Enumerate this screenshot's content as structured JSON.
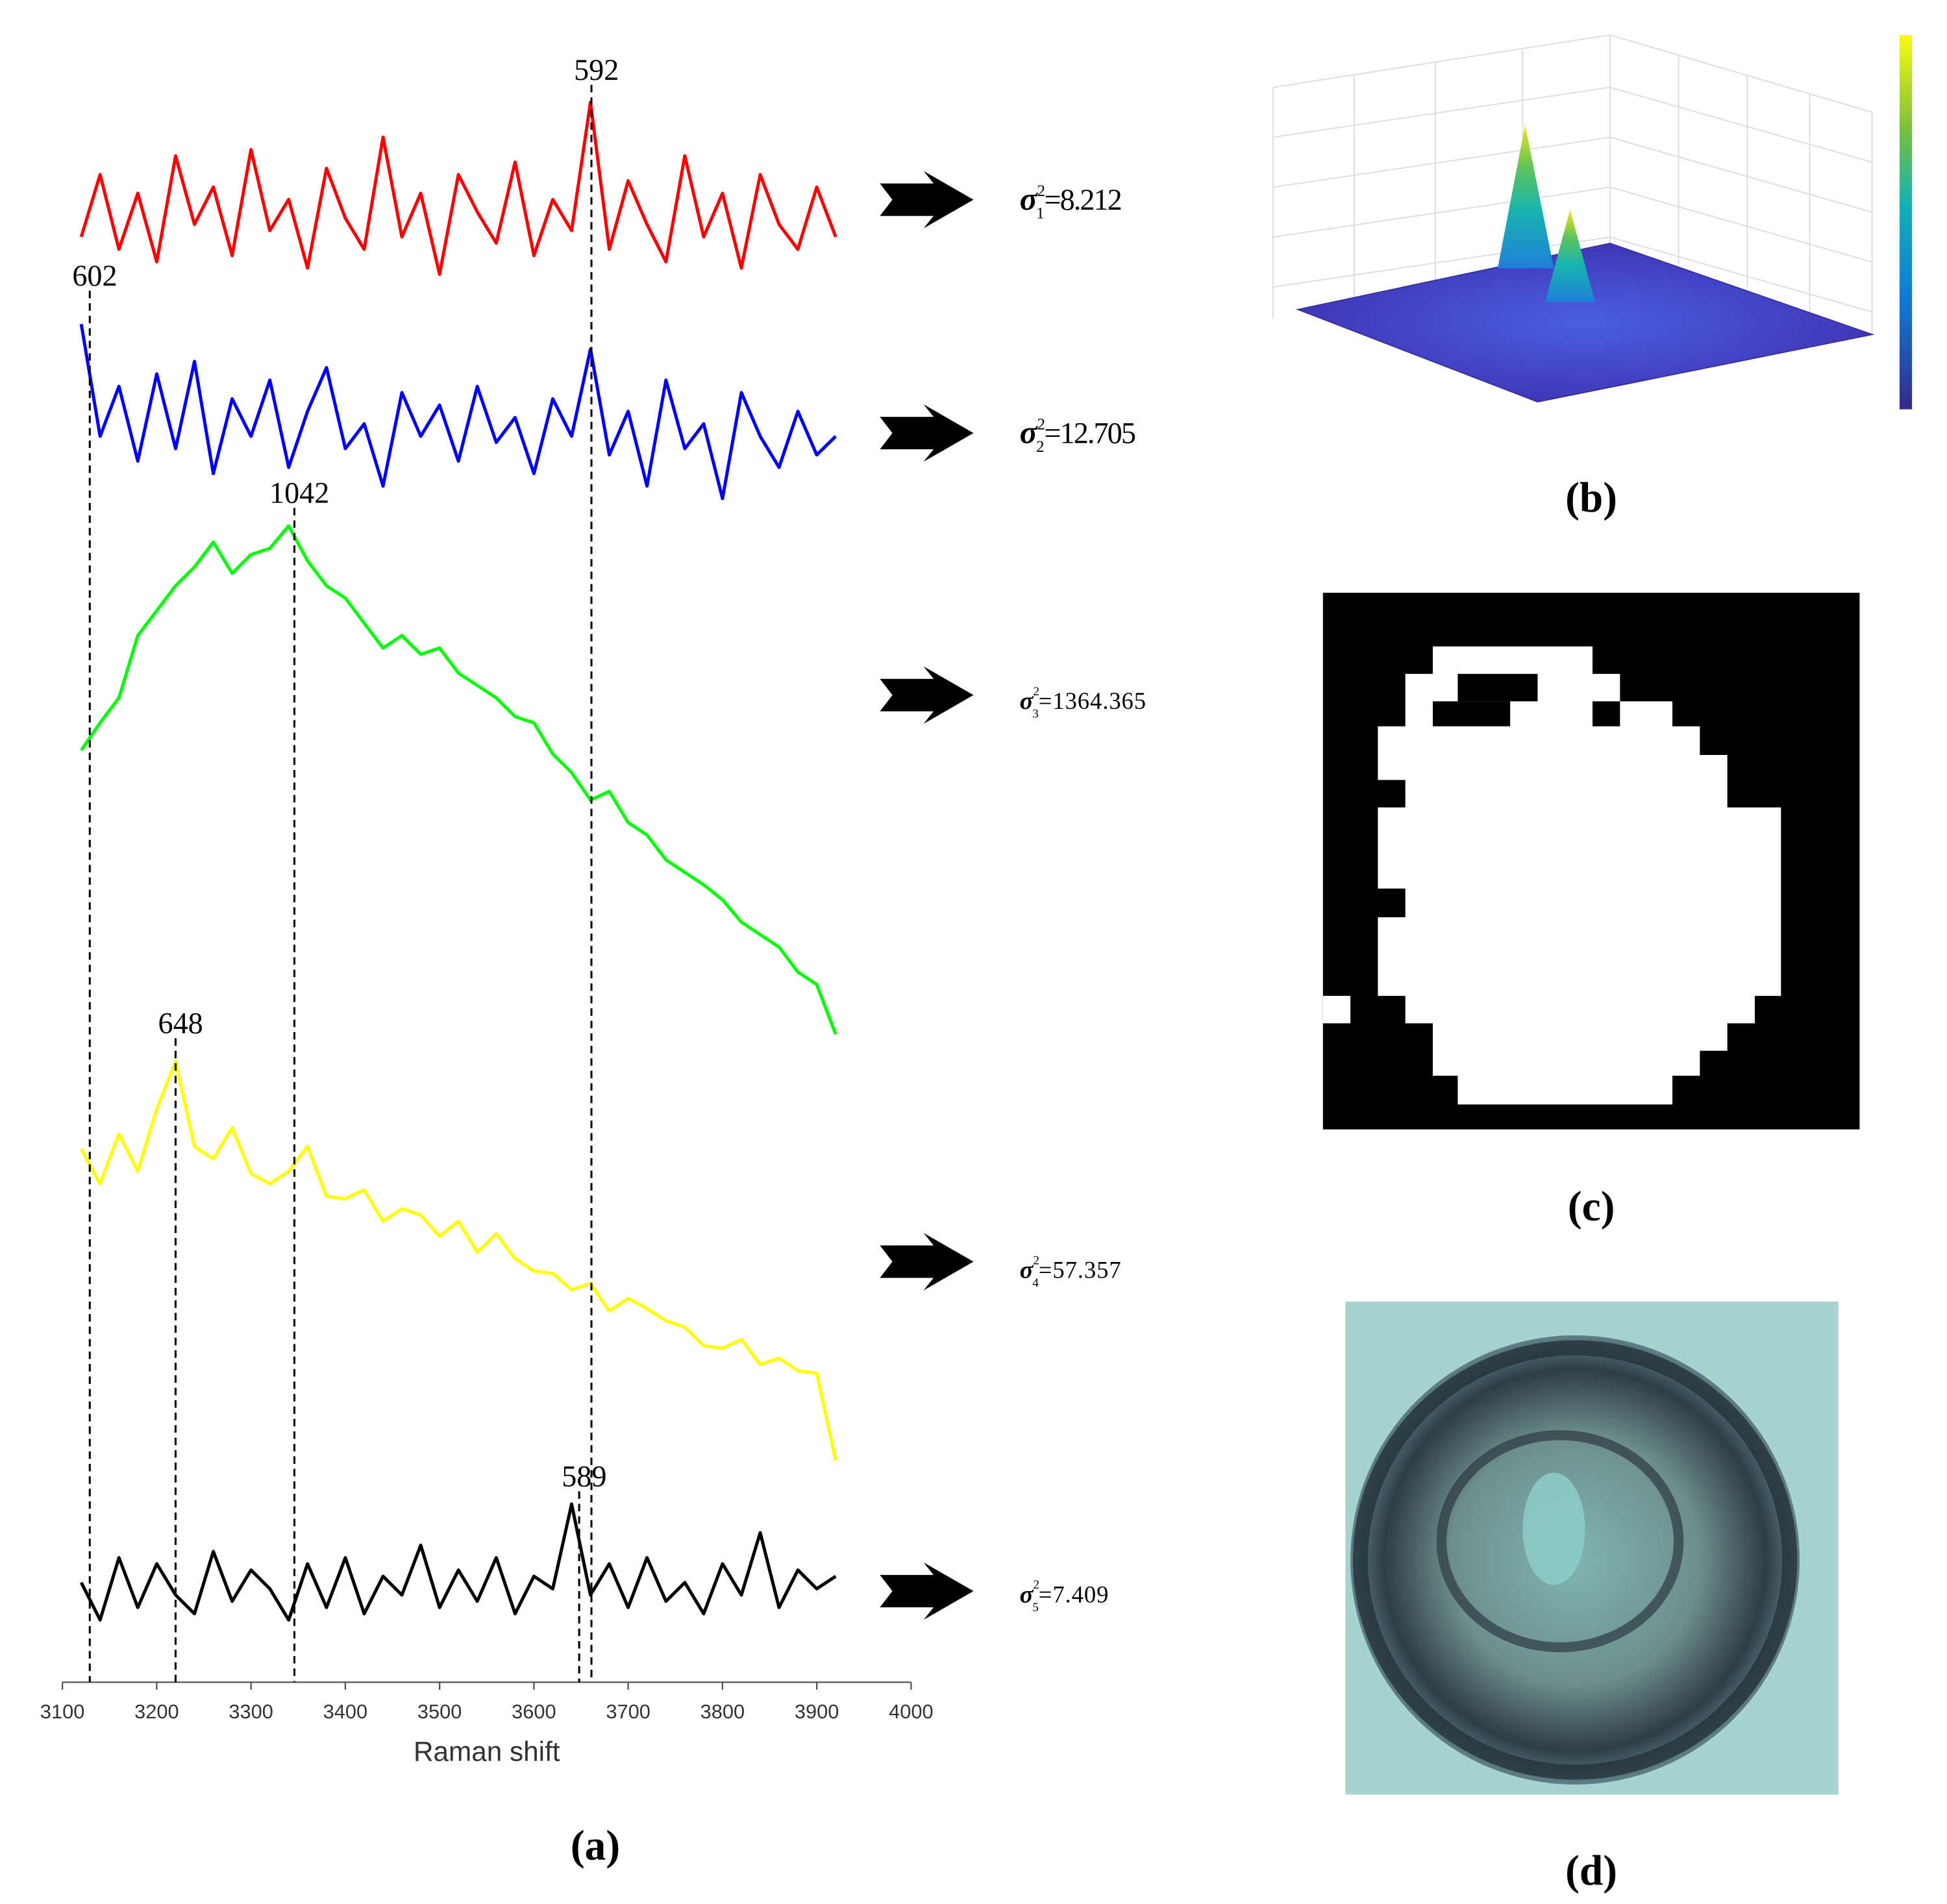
{
  "chart_data": {
    "type": "line",
    "x_label": "Raman shift",
    "x": [
      3120,
      3140,
      3160,
      3180,
      3200,
      3220,
      3240,
      3260,
      3280,
      3300,
      3320,
      3340,
      3360,
      3380,
      3400,
      3420,
      3440,
      3460,
      3480,
      3500,
      3520,
      3540,
      3560,
      3580,
      3600,
      3620,
      3640,
      3660,
      3680,
      3700,
      3720,
      3740,
      3760,
      3780,
      3800,
      3820,
      3840,
      3860,
      3880,
      3900,
      3920
    ],
    "xlim": [
      3100,
      4000
    ],
    "xticks": [
      3100,
      3200,
      3300,
      3400,
      3500,
      3600,
      3700,
      3800,
      3900,
      4000
    ],
    "ylim": [
      0,
      1290
    ],
    "series": [
      {
        "color": "#ff0000",
        "values": [
          1160,
          1210,
          1150,
          1195,
          1140,
          1225,
          1170,
          1200,
          1145,
          1230,
          1165,
          1190,
          1135,
          1215,
          1175,
          1150,
          1240,
          1160,
          1195,
          1130,
          1210,
          1180,
          1155,
          1220,
          1145,
          1190,
          1165,
          1268,
          1150,
          1205,
          1170,
          1140,
          1225,
          1160,
          1195,
          1135,
          1210,
          1170,
          1150,
          1200,
          1160
        ]
      },
      {
        "color": "#0000ff",
        "values": [
          1090,
          1000,
          1040,
          980,
          1050,
          990,
          1060,
          970,
          1030,
          1000,
          1045,
          975,
          1020,
          1055,
          990,
          1010,
          960,
          1035,
          1000,
          1025,
          980,
          1040,
          995,
          1015,
          970,
          1030,
          1000,
          1070,
          985,
          1020,
          960,
          1045,
          990,
          1010,
          950,
          1035,
          1000,
          975,
          1020,
          985,
          1000
        ]
      },
      {
        "color": "#00ff00",
        "values": [
          748,
          770,
          790,
          840,
          860,
          880,
          895,
          915,
          890,
          905,
          910,
          928,
          900,
          880,
          870,
          850,
          830,
          840,
          825,
          830,
          810,
          800,
          790,
          775,
          770,
          745,
          730,
          708,
          715,
          690,
          680,
          660,
          650,
          640,
          628,
          610,
          600,
          590,
          570,
          560,
          520
        ]
      },
      {
        "color": "#ffff00",
        "values": [
          428,
          400,
          440,
          410,
          460,
          498,
          430,
          420,
          445,
          408,
          400,
          410,
          430,
          390,
          388,
          395,
          370,
          380,
          375,
          358,
          370,
          345,
          360,
          340,
          330,
          328,
          315,
          320,
          298,
          308,
          300,
          290,
          285,
          270,
          268,
          275,
          255,
          260,
          250,
          248,
          178
        ]
      },
      {
        "color": "#000000",
        "values": [
          80,
          50,
          100,
          60,
          95,
          70,
          55,
          105,
          65,
          90,
          75,
          50,
          95,
          60,
          100,
          55,
          85,
          70,
          110,
          60,
          90,
          65,
          100,
          55,
          85,
          75,
          143,
          70,
          95,
          60,
          100,
          65,
          80,
          55,
          95,
          70,
          120,
          60,
          90,
          75,
          85
        ]
      }
    ],
    "annotations": [
      {
        "text": 592,
        "x": 3661
      },
      {
        "text": 602,
        "x": 3129
      },
      {
        "text": 1042,
        "x": 3346
      },
      {
        "text": 648,
        "x": 3220
      },
      {
        "text": 589,
        "x": 3648
      }
    ]
  },
  "variances": [
    {
      "symbol": "σ",
      "sup": "2",
      "sub": "1",
      "text": "=8.212"
    },
    {
      "symbol": "σ",
      "sup": "2",
      "sub": "2",
      "text": "=12.705"
    },
    {
      "symbol": "σ",
      "sup": "2",
      "sub": "3",
      "text": "=1364.365"
    },
    {
      "symbol": "σ",
      "sup": "2",
      "sub": "4",
      "text": "=57.357"
    },
    {
      "symbol": "σ",
      "sup": "2",
      "sub": "5",
      "text": "=7.409"
    }
  ],
  "panels": {
    "a": "(a)",
    "b": "(b)",
    "c": "(c)",
    "d": "(d)"
  }
}
